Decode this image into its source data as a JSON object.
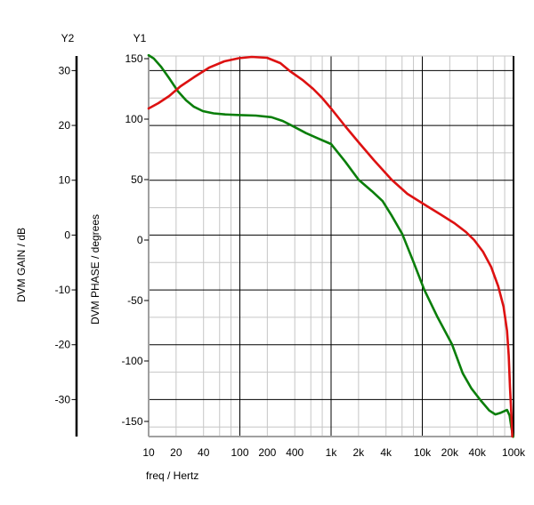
{
  "chart_data": {
    "type": "line",
    "title": "",
    "background": "#ffffff",
    "x_axis": {
      "label": "freq / Hertz",
      "scale": "log",
      "range": [
        10,
        100000
      ],
      "tick_values": [
        10,
        20,
        40,
        100,
        200,
        400,
        1000,
        2000,
        4000,
        10000,
        20000,
        40000,
        100000
      ],
      "tick_labels": [
        "10",
        "20",
        "40",
        "100",
        "200",
        "400",
        "1k",
        "2k",
        "4k",
        "10k",
        "20k",
        "40k",
        "100k"
      ],
      "major_decades": [
        100,
        1000,
        10000,
        100000
      ]
    },
    "y1_axis": {
      "title": "Y1",
      "label": "DVM PHASE / degrees",
      "tick_values": [
        150,
        100,
        50,
        0,
        -50,
        -100,
        -150
      ],
      "tick_labels": [
        "150",
        "100",
        "50",
        "0",
        "-50",
        "-100",
        "-150"
      ],
      "range": [
        150,
        -150
      ]
    },
    "y2_axis": {
      "title": "Y2",
      "label": "DVM GAIN / dB",
      "tick_values": [
        30,
        20,
        10,
        0,
        -10,
        -20,
        -30
      ],
      "tick_labels": [
        "30",
        "20",
        "10",
        "0",
        "-10",
        "-20",
        "-30"
      ],
      "minor_tick_values": [
        25,
        15,
        5,
        -5,
        -15,
        -25,
        -35
      ],
      "range": [
        30,
        -30
      ]
    },
    "grid": {
      "enabled": true,
      "major_color": "#000000",
      "minor_color": "#c6c6c6",
      "border_color": "#a0a0a0",
      "minor_log_multiples": [
        2,
        4,
        6,
        8
      ]
    },
    "legend": "none",
    "series": [
      {
        "name": "DVM GAIN",
        "axis": "y2",
        "units": "dB",
        "color": "#0a7e0a",
        "points": [
          [
            10,
            32.8
          ],
          [
            11.4,
            32.2
          ],
          [
            13.7,
            30.7
          ],
          [
            16.8,
            28.6
          ],
          [
            21,
            26.2
          ],
          [
            25.7,
            24.6
          ],
          [
            31.4,
            23.4
          ],
          [
            39.4,
            22.6
          ],
          [
            51.6,
            22.2
          ],
          [
            69,
            22.0
          ],
          [
            100,
            21.9
          ],
          [
            150,
            21.8
          ],
          [
            222,
            21.5
          ],
          [
            296,
            20.8
          ],
          [
            388,
            19.8
          ],
          [
            531,
            18.6
          ],
          [
            728,
            17.6
          ],
          [
            1000,
            16.6
          ],
          [
            1430,
            13.4
          ],
          [
            2000,
            10.1
          ],
          [
            2810,
            8.0
          ],
          [
            3670,
            6.2
          ],
          [
            4600,
            3.6
          ],
          [
            6030,
            0.2
          ],
          [
            8040,
            -5.0
          ],
          [
            10530,
            -10.0
          ],
          [
            14730,
            -15.0
          ],
          [
            21150,
            -19.9
          ],
          [
            27730,
            -25.2
          ],
          [
            34670,
            -28.0
          ],
          [
            43350,
            -30.1
          ],
          [
            54200,
            -32.0
          ],
          [
            63270,
            -32.7
          ],
          [
            72450,
            -32.4
          ],
          [
            84850,
            -31.9
          ],
          [
            90580,
            -32.9
          ],
          [
            94620,
            -35.0
          ],
          [
            99000,
            -36.8
          ]
        ]
      },
      {
        "name": "DVM PHASE",
        "axis": "y1",
        "units": "degrees",
        "color": "#dd1111",
        "points": [
          [
            10,
            108.8
          ],
          [
            12.8,
            113.2
          ],
          [
            16.8,
            119.1
          ],
          [
            22.4,
            127.2
          ],
          [
            31.4,
            134.6
          ],
          [
            46,
            142.6
          ],
          [
            67.5,
            147.8
          ],
          [
            97,
            150.4
          ],
          [
            135,
            151.5
          ],
          [
            199,
            150.7
          ],
          [
            278,
            146.3
          ],
          [
            354,
            139.7
          ],
          [
            486,
            132.4
          ],
          [
            637,
            125.0
          ],
          [
            797,
            117.6
          ],
          [
            1000,
            108.8
          ],
          [
            1430,
            94.1
          ],
          [
            2000,
            80.9
          ],
          [
            2940,
            66.2
          ],
          [
            4600,
            50.0
          ],
          [
            6860,
            38.2
          ],
          [
            10530,
            29.4
          ],
          [
            15750,
            21.3
          ],
          [
            22560,
            13.9
          ],
          [
            30130,
            6.6
          ],
          [
            37070,
            0.0
          ],
          [
            46320,
            -9.6
          ],
          [
            56770,
            -22.1
          ],
          [
            67920,
            -38.2
          ],
          [
            77670,
            -55.1
          ],
          [
            84850,
            -75.0
          ],
          [
            88620,
            -95.6
          ],
          [
            91490,
            -121.3
          ],
          [
            94620,
            -143.4
          ],
          [
            96800,
            -162.5
          ]
        ]
      }
    ]
  }
}
